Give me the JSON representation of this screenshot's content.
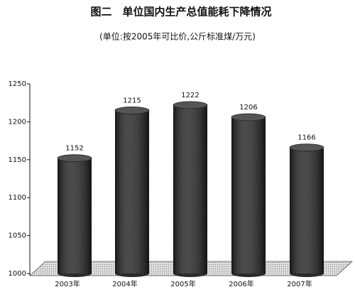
{
  "chart_data": {
    "type": "bar",
    "title": "图二　单位国内生产总值能耗下降情况",
    "subtitle": "(单位:按2005年可比价,公斤标准煤/万元)",
    "categories": [
      "2003年",
      "2004年",
      "2005年",
      "2006年",
      "2007年"
    ],
    "values": [
      1152,
      1215,
      1222,
      1206,
      1166
    ],
    "color": "#2a2a2a",
    "ylim": [
      1000,
      1250
    ],
    "yticks": [
      1000,
      1050,
      1100,
      1150,
      1200,
      1250
    ]
  }
}
